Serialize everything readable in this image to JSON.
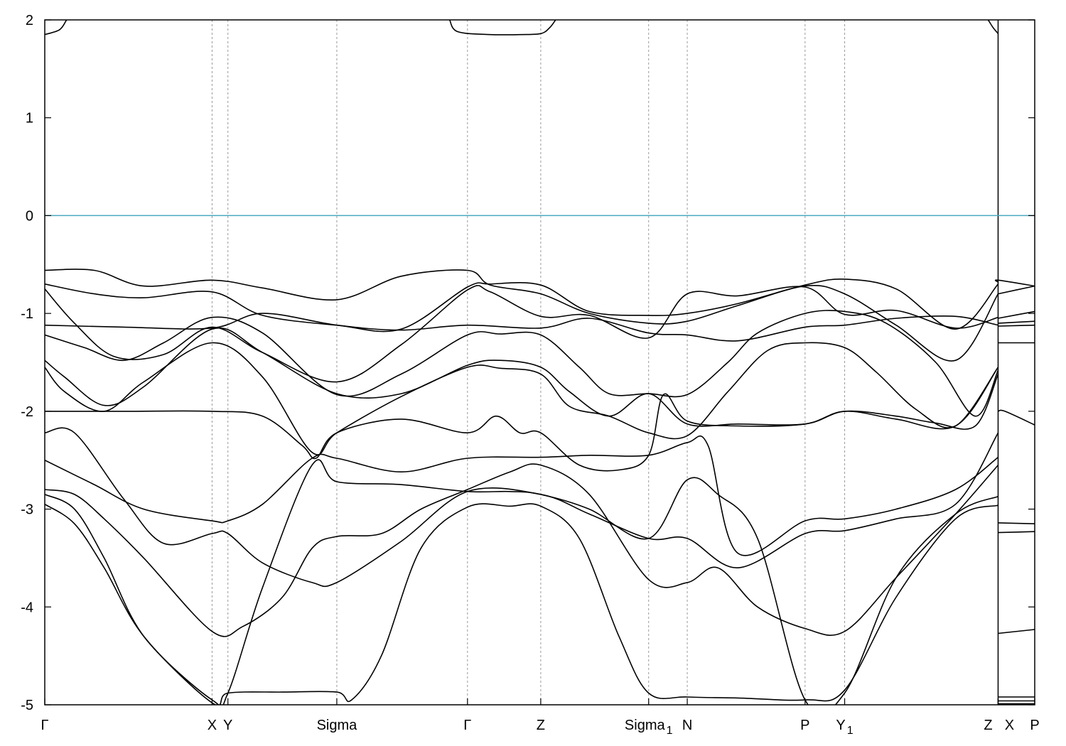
{
  "chart_data": {
    "type": "line",
    "title": "",
    "xlabel": "",
    "ylabel": "",
    "ylim": [
      -5,
      2
    ],
    "yticks": [
      2,
      1,
      0,
      -1,
      -2,
      -3,
      -4,
      -5
    ],
    "ytick_labels": [
      "2",
      "1",
      "0",
      "-1",
      "-2",
      "-3",
      "-4",
      "-5"
    ],
    "xlim": [
      0,
      100
    ],
    "kpoints": [
      {
        "x": 0.0,
        "label": "Γ",
        "sub": "",
        "dashed": false
      },
      {
        "x": 16.9,
        "label": "X",
        "sub": "",
        "dashed": true
      },
      {
        "x": 18.5,
        "label": "Y",
        "sub": "",
        "dashed": true
      },
      {
        "x": 29.5,
        "label": "Sigma",
        "sub": "",
        "dashed": true
      },
      {
        "x": 42.7,
        "label": "Γ",
        "sub": "",
        "dashed": true
      },
      {
        "x": 50.1,
        "label": "Z",
        "sub": "",
        "dashed": true
      },
      {
        "x": 61.0,
        "label": "Sigma",
        "sub": "1",
        "dashed": true
      },
      {
        "x": 64.9,
        "label": "N",
        "sub": "",
        "dashed": true
      },
      {
        "x": 76.8,
        "label": "P",
        "sub": "",
        "dashed": true
      },
      {
        "x": 80.8,
        "label": "Y",
        "sub": "1",
        "dashed": true
      },
      {
        "x": 96.3,
        "label": "Z",
        "sub": "",
        "dashed": true
      },
      {
        "x": 96.3,
        "label": "X",
        "sub": "",
        "dashed": false
      },
      {
        "x": 100.0,
        "label": "P",
        "sub": "",
        "dashed": false
      }
    ],
    "fermi_level": 0,
    "fermi_color": "#4aa8c0",
    "band_color": "#000000",
    "grid": false,
    "bands": [
      {
        "x": [
          0,
          1.5,
          2.2
        ],
        "y": [
          1.85,
          1.9,
          2.0
        ]
      },
      {
        "x": [
          40.9,
          41.7,
          45,
          48,
          50.1,
          51,
          51.6
        ],
        "y": [
          2.0,
          1.88,
          1.85,
          1.85,
          1.86,
          1.92,
          2.0
        ]
      },
      {
        "x": [
          95.3,
          95.8,
          96.3
        ],
        "y": [
          2.0,
          1.92,
          1.86
        ]
      },
      {
        "x": [
          0,
          5,
          10,
          16.9,
          22,
          29.5,
          36,
          42.7,
          45,
          50.1,
          55,
          61,
          64.9,
          70,
          76.8,
          80.8,
          86,
          92,
          96.3
        ],
        "y": [
          -0.56,
          -0.56,
          -0.72,
          -0.66,
          -0.74,
          -0.86,
          -0.62,
          -0.56,
          -0.71,
          -0.8,
          -1.0,
          -1.1,
          -1.08,
          -0.92,
          -0.72,
          -0.8,
          -1.12,
          -1.48,
          -0.8
        ]
      },
      {
        "x": [
          0,
          5,
          10,
          16.9,
          22,
          29.5,
          36,
          42.7,
          45,
          50.1,
          55,
          61,
          64.9,
          70,
          76.8,
          80.8,
          86,
          92,
          96.3
        ],
        "y": [
          -0.7,
          -0.8,
          -0.84,
          -0.78,
          -1.02,
          -1.12,
          -1.16,
          -0.73,
          -0.7,
          -0.71,
          -0.98,
          -1.02,
          -1.0,
          -0.9,
          -0.71,
          -0.65,
          -0.75,
          -1.16,
          -0.7
        ]
      },
      {
        "x": [
          0,
          3,
          7,
          12,
          16.9,
          22,
          29.5,
          36,
          42.7,
          45,
          50.1,
          55,
          61,
          64.9,
          70,
          76.8,
          80.8,
          86,
          92,
          96.3
        ],
        "y": [
          -0.75,
          -1.1,
          -1.44,
          -1.42,
          -1.14,
          -1.4,
          -1.7,
          -1.32,
          -0.76,
          -0.78,
          -1.03,
          -1.02,
          -1.25,
          -0.8,
          -0.82,
          -0.73,
          -1.01,
          -0.97,
          -1.15,
          -1.04
        ]
      },
      {
        "x": [
          0,
          8,
          16.9,
          22,
          29.5,
          36,
          42.7,
          50.1,
          55,
          61,
          64.9,
          70,
          76.8,
          80.8,
          86,
          92,
          96.3
        ],
        "y": [
          -1.12,
          -1.14,
          -1.15,
          -1.0,
          -1.12,
          -1.17,
          -1.12,
          -1.15,
          -1.05,
          -1.2,
          -1.22,
          -1.28,
          -1.14,
          -1.12,
          -1.05,
          -1.03,
          -1.12
        ]
      },
      {
        "x": [
          0,
          4,
          8,
          12,
          16.9,
          22,
          29.5,
          36,
          42.7,
          46,
          50.1,
          54,
          57,
          61,
          64.9,
          69,
          72,
          76.8,
          80.8,
          85,
          90,
          94,
          96.3
        ],
        "y": [
          -1.22,
          -1.35,
          -1.48,
          -1.3,
          -1.04,
          -1.2,
          -1.83,
          -1.62,
          -1.22,
          -1.21,
          -1.22,
          -1.55,
          -1.82,
          -1.82,
          -1.83,
          -1.5,
          -1.2,
          -1.0,
          -0.98,
          -1.1,
          -1.5,
          -2.05,
          -1.58
        ]
      },
      {
        "x": [
          0,
          2,
          6,
          10,
          16.9,
          22,
          29.5,
          36,
          42.7,
          46,
          50.1,
          53,
          57,
          61,
          64.9,
          70,
          76.8,
          80.8,
          86,
          90,
          94,
          96.3
        ],
        "y": [
          -1.48,
          -1.65,
          -1.94,
          -1.75,
          -1.16,
          -1.4,
          -1.82,
          -1.82,
          -1.53,
          -1.48,
          -1.55,
          -1.8,
          -2.05,
          -1.82,
          -2.13,
          -2.13,
          -2.13,
          -2.0,
          -2.05,
          -2.12,
          -2.15,
          -1.62
        ]
      },
      {
        "x": [
          0,
          2,
          6,
          10,
          16.9,
          22,
          27,
          29.5,
          36,
          42.7,
          46,
          50.1,
          53,
          57,
          61,
          64.9,
          69,
          73,
          76.8,
          80.8,
          84,
          88,
          92,
          96.3
        ],
        "y": [
          -1.55,
          -1.8,
          -2.0,
          -1.7,
          -1.3,
          -1.65,
          -2.42,
          -2.22,
          -1.85,
          -1.55,
          -1.56,
          -1.62,
          -1.95,
          -2.05,
          -2.22,
          -2.25,
          -1.8,
          -1.38,
          -1.3,
          -1.35,
          -1.6,
          -1.98,
          -2.15,
          -1.55
        ]
      },
      {
        "x": [
          0,
          8,
          16.9,
          22,
          26,
          27.4,
          29.5,
          36,
          42.7,
          45.6,
          48,
          50.1,
          54,
          58,
          61,
          62.5,
          64.9,
          70,
          76.8,
          80.8,
          86,
          92,
          96.3
        ],
        "y": [
          -2.0,
          -2.0,
          -2.0,
          -2.05,
          -2.35,
          -2.48,
          -2.22,
          -2.08,
          -2.22,
          -2.05,
          -2.22,
          -2.22,
          -2.55,
          -2.6,
          -2.45,
          -1.83,
          -2.1,
          -2.15,
          -2.13,
          -2.0,
          -2.08,
          -2.15,
          -1.55
        ]
      },
      {
        "x": [
          0,
          3,
          8,
          12,
          16.9,
          18.5,
          22,
          27,
          29.5,
          36,
          42.7,
          50.1,
          55,
          61,
          64.9,
          70,
          76.8,
          80.8,
          86,
          92,
          96.3
        ],
        "y": [
          -2.22,
          -2.22,
          -2.9,
          -3.35,
          -3.25,
          -3.25,
          -3.55,
          -3.75,
          -3.75,
          -3.33,
          -2.82,
          -2.85,
          -3.05,
          -3.3,
          -3.3,
          -3.6,
          -3.25,
          -3.22,
          -3.1,
          -2.95,
          -2.22
        ]
      },
      {
        "x": [
          0,
          5,
          10,
          16.9,
          18.5,
          22,
          27,
          29.5,
          36,
          42.7,
          50.1,
          55,
          61,
          64.9,
          67,
          70,
          76.8,
          80.8,
          86,
          92,
          96.3
        ],
        "y": [
          -2.5,
          -2.75,
          -3.0,
          -3.12,
          -3.12,
          -2.95,
          -2.48,
          -2.48,
          -2.62,
          -2.48,
          -2.47,
          -2.45,
          -2.45,
          -2.32,
          -2.35,
          -3.45,
          -3.12,
          -3.1,
          -3.0,
          -2.8,
          -2.47
        ]
      },
      {
        "x": [
          0,
          3,
          6,
          10,
          16.9,
          20,
          24,
          27,
          29.5,
          34,
          38,
          42.7,
          47,
          50.1,
          55,
          61,
          64.9,
          68,
          72,
          76.8,
          80.8,
          86,
          92,
          96.3
        ],
        "y": [
          -2.8,
          -2.85,
          -3.1,
          -3.5,
          -4.25,
          -4.2,
          -3.9,
          -3.4,
          -3.28,
          -3.25,
          -3.0,
          -2.8,
          -2.62,
          -2.55,
          -2.85,
          -3.72,
          -3.75,
          -3.6,
          -4.0,
          -4.22,
          -4.25,
          -3.7,
          -3.05,
          -2.55
        ]
      },
      {
        "x": [
          0,
          3,
          6,
          10,
          16.9,
          18.5,
          22,
          27,
          29.5,
          36,
          42.7,
          47,
          50.1,
          55,
          61,
          64.9,
          68,
          72,
          76.8,
          80.8,
          86,
          92,
          96.3
        ],
        "y": [
          -2.85,
          -3.0,
          -3.5,
          -4.3,
          -4.95,
          -4.88,
          -3.8,
          -2.55,
          -2.72,
          -2.75,
          -2.82,
          -2.82,
          -2.85,
          -3.0,
          -3.3,
          -2.7,
          -2.85,
          -3.3,
          -4.95,
          -4.88,
          -3.7,
          -3.05,
          -2.87
        ]
      },
      {
        "x": [
          0,
          3,
          6,
          10,
          16.9,
          18.5,
          24,
          29.5,
          31,
          34,
          38,
          42.7,
          47,
          50.1,
          54,
          58,
          61,
          64.9,
          70,
          76.8,
          80.8,
          86,
          92,
          96.3
        ],
        "y": [
          -2.95,
          -3.15,
          -3.6,
          -4.3,
          -4.98,
          -4.88,
          -4.87,
          -4.87,
          -4.95,
          -4.5,
          -3.4,
          -2.98,
          -2.97,
          -2.97,
          -3.3,
          -4.3,
          -4.88,
          -4.92,
          -4.93,
          -4.95,
          -4.85,
          -3.9,
          -3.1,
          -2.96
        ]
      },
      {
        "x": [
          96.3,
          96.3,
          100
        ],
        "y": [
          -0.68,
          -0.66,
          -0.72
        ]
      },
      {
        "x": [
          96.3,
          100
        ],
        "y": [
          -0.8,
          -0.72
        ]
      },
      {
        "x": [
          96.3,
          100
        ],
        "y": [
          -1.05,
          -0.98
        ]
      },
      {
        "x": [
          96.3,
          100
        ],
        "y": [
          -1.1,
          -1.08
        ]
      },
      {
        "x": [
          96.3,
          100
        ],
        "y": [
          -1.13,
          -1.12
        ]
      },
      {
        "x": [
          96.3,
          100
        ],
        "y": [
          -1.3,
          -1.3
        ]
      },
      {
        "x": [
          96.3,
          97,
          100
        ],
        "y": [
          -2.0,
          -2.0,
          -2.14
        ]
      },
      {
        "x": [
          96.3,
          100
        ],
        "y": [
          -3.14,
          -3.15
        ]
      },
      {
        "x": [
          96.3,
          100
        ],
        "y": [
          -3.24,
          -3.23
        ]
      },
      {
        "x": [
          96.3,
          100
        ],
        "y": [
          -4.27,
          -4.23
        ]
      },
      {
        "x": [
          96.3,
          100
        ],
        "y": [
          -4.92,
          -4.92
        ]
      },
      {
        "x": [
          96.3,
          100
        ],
        "y": [
          -4.96,
          -4.96
        ]
      },
      {
        "x": [
          96.3,
          100
        ],
        "y": [
          -4.99,
          -4.99
        ]
      }
    ]
  }
}
